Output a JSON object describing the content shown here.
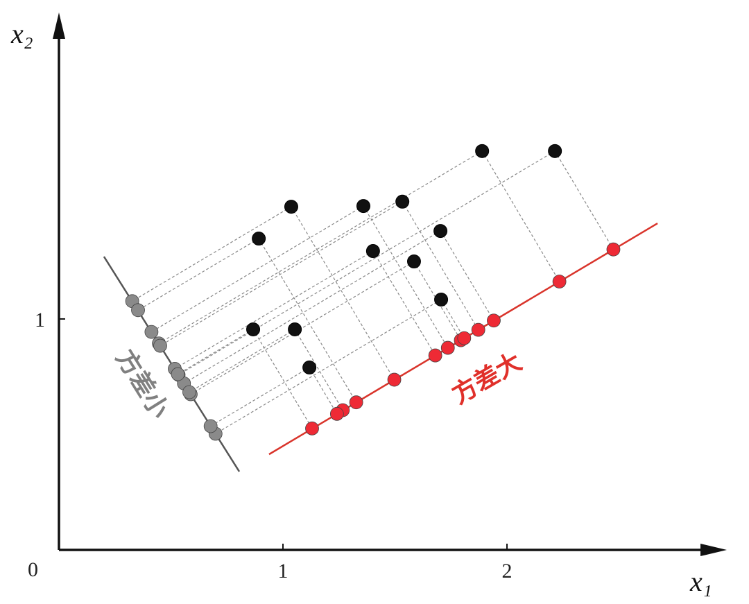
{
  "chart_data": {
    "type": "scatter",
    "xlabel": "x₁",
    "ylabel": "x₂",
    "annotations": [
      {
        "text": "方差小",
        "color": "#808080"
      },
      {
        "text": "方差大",
        "color": "#e0302a"
      }
    ],
    "xlim": [
      0,
      2.972
    ],
    "ylim": [
      0,
      2.321
    ],
    "xticks": [
      0,
      1,
      2
    ],
    "yticks": [
      1
    ],
    "series": [
      {
        "color": "#111111",
        "x": [
          1.889,
          2.214,
          1.037,
          1.359,
          1.533,
          0.892,
          1.703,
          1.402,
          1.585,
          1.706,
          0.867,
          1.053,
          1.118
        ],
        "y": [
          1.727,
          1.727,
          1.486,
          1.489,
          1.508,
          1.348,
          1.381,
          1.294,
          1.249,
          1.084,
          0.955,
          0.955,
          0.79
        ]
      },
      {
        "color": "#ee2a35",
        "x": [
          2.234,
          2.475,
          1.497,
          1.736,
          1.872,
          1.327,
          1.941,
          1.68,
          1.794,
          1.809,
          1.13,
          1.267,
          1.241
        ],
        "y": [
          1.162,
          1.301,
          0.737,
          0.875,
          0.953,
          0.639,
          0.993,
          0.842,
          0.908,
          0.917,
          0.526,
          0.605,
          0.589
        ]
      },
      {
        "color": "#8a8a8a",
        "x": [
          0.446,
          0.534,
          0.327,
          0.413,
          0.452,
          0.353,
          0.558,
          0.517,
          0.588,
          0.699,
          0.531,
          0.582,
          0.677
        ],
        "y": [
          0.894,
          0.758,
          1.077,
          0.944,
          0.884,
          1.038,
          0.721,
          0.784,
          0.674,
          0.503,
          0.761,
          0.683,
          0.536
        ]
      }
    ],
    "lines": [
      {
        "color": "#d9342b",
        "x": [
          0.938,
          2.672
        ],
        "y": [
          0.414,
          1.414
        ]
      },
      {
        "color": "#555555",
        "x": [
          0.201,
          0.805
        ],
        "y": [
          1.27,
          0.339
        ]
      }
    ]
  }
}
